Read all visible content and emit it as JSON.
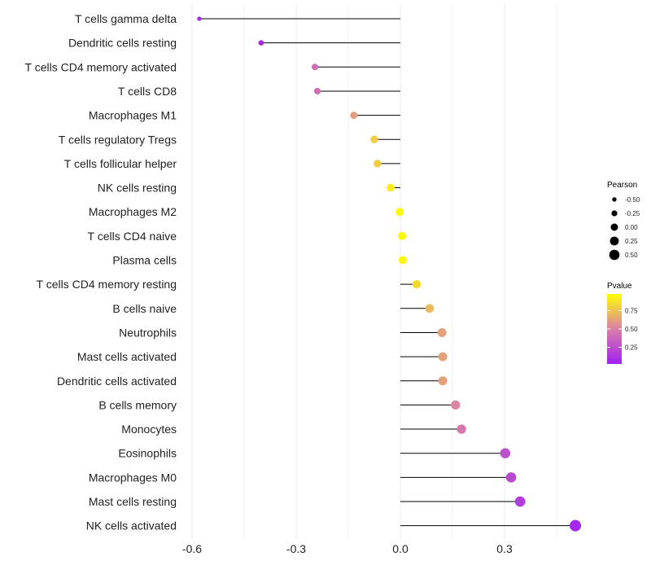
{
  "chart_data": {
    "type": "lollipop",
    "title": "",
    "xlabel": "",
    "ylabel": "",
    "xlim": [
      -0.64,
      0.55
    ],
    "x_ticks": [
      -0.6,
      -0.3,
      0.0,
      0.3
    ],
    "x_tick_labels": [
      "-0.6",
      "-0.3",
      "0.0",
      "0.3"
    ],
    "grid": true,
    "categories": [
      "T cells gamma delta",
      "Dendritic cells resting",
      "T cells CD4 memory activated",
      "T cells CD8",
      "Macrophages M1",
      "T cells regulatory  Tregs",
      "T cells follicular helper",
      "NK cells resting",
      "Macrophages M2",
      "T cells CD4 naive",
      "Plasma cells",
      "T cells CD4 memory resting",
      "B cells naive",
      "Neutrophils",
      "Mast cells activated",
      "Dendritic cells activated",
      "B cells memory",
      "Monocytes",
      "Eosinophils",
      "Macrophages M0",
      "Mast cells resting",
      "NK cells activated"
    ],
    "pearson": [
      -0.579,
      -0.401,
      -0.246,
      -0.239,
      -0.134,
      -0.075,
      -0.066,
      -0.028,
      -0.002,
      0.005,
      0.007,
      0.047,
      0.084,
      0.12,
      0.122,
      0.122,
      0.159,
      0.176,
      0.302,
      0.319,
      0.345,
      0.504
    ],
    "pvalue": [
      0.03,
      0.08,
      0.4,
      0.4,
      0.62,
      0.8,
      0.8,
      0.93,
      0.98,
      0.98,
      0.97,
      0.85,
      0.72,
      0.63,
      0.63,
      0.63,
      0.52,
      0.47,
      0.25,
      0.22,
      0.15,
      0.04
    ],
    "legend_size": {
      "title": "Pearson",
      "values": [
        -0.5,
        -0.25,
        0.0,
        0.25,
        0.5
      ],
      "labels": [
        "-0.50",
        "-0.25",
        "0.00",
        "0.25",
        "0.50"
      ],
      "placement": "right"
    },
    "legend_color": {
      "title": "Pvalue",
      "labels": [
        "0.75",
        "0.50",
        "0.25"
      ],
      "values": [
        0.75,
        0.5,
        0.25
      ],
      "range": [
        0.0,
        1.0
      ],
      "low_color": "#A020F0",
      "mid_color": "#D980A8",
      "high_color": "#FFFF00",
      "placement": "right"
    }
  }
}
